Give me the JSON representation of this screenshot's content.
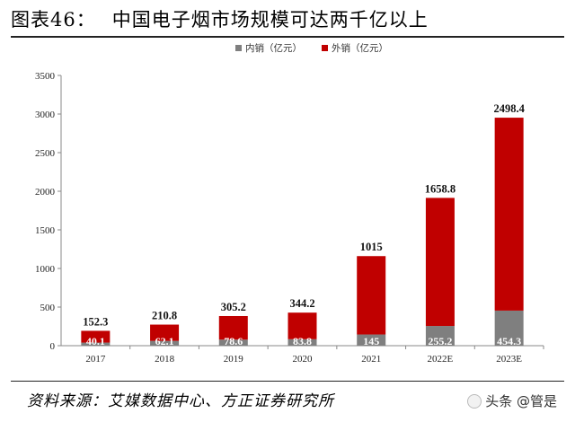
{
  "figure": {
    "number": "图表46：",
    "title": "中国电子烟市场规模可达两千亿以上",
    "source": "资料来源：艾媒数据中心、方正证券研究所",
    "watermark": "头条 @管是"
  },
  "colors": {
    "domestic": "#7f7f7f",
    "export": "#c00000"
  },
  "chart_data": {
    "type": "bar",
    "stacked": true,
    "categories": [
      "2017",
      "2018",
      "2019",
      "2020",
      "2021",
      "2022E",
      "2023E"
    ],
    "series": [
      {
        "name": "内销（亿元）",
        "values": [
          40.1,
          62.1,
          78.6,
          83.8,
          145,
          255.2,
          454.3
        ]
      },
      {
        "name": "外销（亿元）",
        "values": [
          152.3,
          210.8,
          305.2,
          344.2,
          1015,
          1658.8,
          2498.4
        ]
      }
    ],
    "value_labels_domestic": [
      "40.1",
      "62.1",
      "78.6",
      "83.8",
      "145",
      "255.2",
      "454.3"
    ],
    "value_labels_export": [
      "152.3",
      "210.8",
      "305.2",
      "344.2",
      "1015",
      "1658.8",
      "2498.4"
    ],
    "yticks": [
      "0",
      "500",
      "1000",
      "1500",
      "2000",
      "2500",
      "3000",
      "3500"
    ],
    "ylim": [
      0,
      3500
    ],
    "grid": false,
    "legend": "top-center"
  }
}
